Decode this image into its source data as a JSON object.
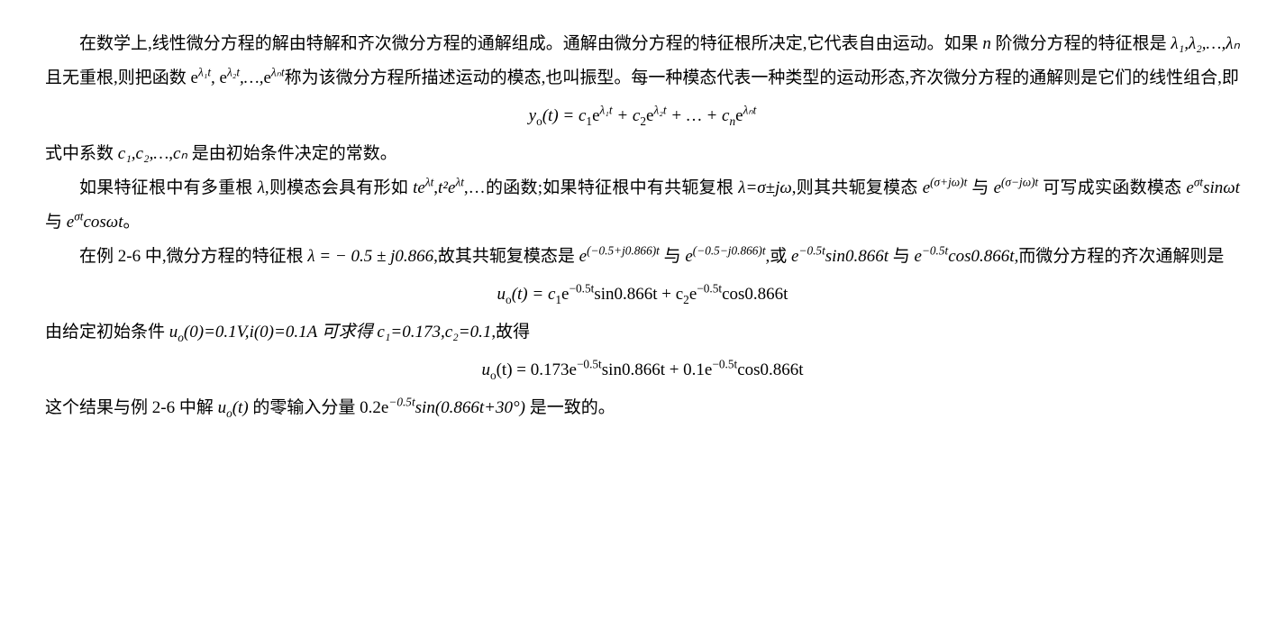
{
  "p1_a": "在数学上,线性微分方程的解由特解和齐次微分方程的通解组成。通解由微分方程的特征根所决定,它代表自由运动。如果 ",
  "p1_n": "n",
  "p1_b": " 阶微分方程的特征根是 ",
  "p1_roots": "λ₁,λ₂,…,λₙ",
  "p1_c": " 且无重根,则把函数 ",
  "p1_d": "称为该微分方程所描述运动的模态,也叫振型。每一种模态代表一种类型的运动形态,齐次微分方程的通解则是它们的线性组合,即",
  "eq1_y": "y",
  "eq1_o": "o",
  "eq1_t": "(t) = c",
  "eq1_1": "1",
  "eq1_e": "e",
  "eq1_l1": "λ₁t",
  "eq1_p1": " + c",
  "eq1_2": "2",
  "eq1_l2": "λ₂t",
  "eq1_dots": " + … + c",
  "eq1_n": "n",
  "eq1_ln": "λₙt",
  "p2_a": "式中系数 ",
  "p2_c": "c₁,c₂,…,cₙ",
  "p2_b": " 是由初始条件决定的常数。",
  "p3_a": "如果特征根中有多重根 ",
  "p3_l": "λ",
  "p3_b": ",则模态会具有形如 ",
  "p3_te": "t",
  "p3_e": "e",
  "p3_lt": "λt",
  "p3_c": ",",
  "p3_t2": "t²",
  "p3_d": ",…的函数;如果特征根中有共轭复根 ",
  "p3_lam": "λ=σ±jω",
  "p3_e2": ",则其共轭复模态 ",
  "p3_exp1": "(σ+jω)t",
  "p3_and": " 与 ",
  "p3_exp2": "(σ−jω)t",
  "p3_f": " 可写成实函数模态 ",
  "p3_st": "σt",
  "p3_sin": "sinωt",
  "p3_cos": "cosωt",
  "p3_g": "。",
  "p4_a": "在例 2-6 中,微分方程的特征根 ",
  "p4_lam": "λ = − 0.5 ± j0.866",
  "p4_b": ",故其共轭复模态是 ",
  "p4_exp1": "(−0.5+j0.866)t",
  "p4_and": " 与 ",
  "p4_exp2": "(−0.5−j0.866)t",
  "p4_c": ",或 ",
  "p4_m05t": "−0.5t",
  "p4_sin": "sin0.866t",
  "p4_cos": "cos0.866t",
  "p4_d": ",而微分方程的齐次通解则是",
  "eq2_u": "u",
  "eq2_o": "o",
  "eq2_a": "(t) = c",
  "eq2_1": "1",
  "eq2_e": "e",
  "eq2_m": "−0.5t",
  "eq2_sin": "sin0.866t + c",
  "eq2_2": "2",
  "eq2_cos": "cos0.866t",
  "p5_a": "由给定初始条件 ",
  "p5_u0": "u",
  "p5_o": "o",
  "p5_b": "(0)=0.1V,",
  "p5_i": "i",
  "p5_c": "(0)=0.1A 可求得 ",
  "p5_c1": "c₁=0.173,c₂=0.1",
  "p5_d": ",故得",
  "eq3_a": "(t) = 0.173e",
  "eq3_m": "−0.5t",
  "eq3_sin": "sin0.866t + 0.1e",
  "eq3_cos": "cos0.866t",
  "p6_a": "这个结果与例 2-6 中解 ",
  "p6_u": "u",
  "p6_o": "o",
  "p6_t": "(t)",
  "p6_b": " 的零输入分量 0.2e",
  "p6_m": "−0.5t",
  "p6_sin": "sin(0.866t+30°)",
  "p6_c": " 是一致的。"
}
